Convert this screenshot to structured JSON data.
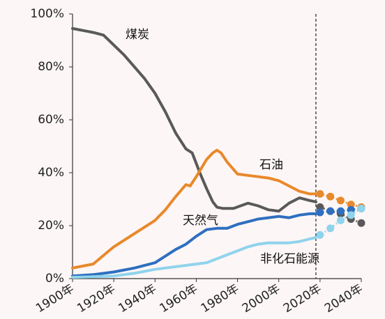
{
  "colors": {
    "background": "#fdf6f6",
    "coal": "#595959",
    "oil": "#e8892b",
    "gas": "#2e6fc0",
    "nonfossil": "#8fd3ec",
    "axis": "#333333"
  },
  "chart_data": {
    "type": "line",
    "title": "",
    "xlabel": "",
    "ylabel": "",
    "xlim": [
      1900,
      2040
    ],
    "ylim": [
      0,
      100
    ],
    "y_ticks": [
      0,
      20,
      40,
      60,
      80,
      100
    ],
    "y_tick_labels": [
      "0%",
      "20%",
      "40%",
      "60%",
      "80%",
      "100%"
    ],
    "x_ticks": [
      1900,
      1920,
      1940,
      1960,
      1980,
      2000,
      2020,
      2040
    ],
    "x_tick_labels": [
      "1900年",
      "1920年",
      "1940年",
      "1960年",
      "1980年",
      "2000年",
      "2020年",
      "2040年"
    ],
    "grid": false,
    "legend": "none (series labeled inline)",
    "forecast_start": 2018,
    "series": [
      {
        "name": "煤炭",
        "color_key": "coal",
        "x": [
          1900,
          1910,
          1915,
          1925,
          1935,
          1940,
          1945,
          1950,
          1955,
          1958,
          1962,
          1965,
          1968,
          1970,
          1973,
          1978,
          1985,
          1990,
          1995,
          2000,
          2005,
          2010,
          2015,
          2018
        ],
        "y": [
          94.5,
          93,
          92,
          84.5,
          75.5,
          70,
          63,
          55,
          49,
          47.5,
          39.5,
          34,
          29,
          27,
          26.5,
          26.5,
          28.5,
          27.5,
          26,
          25.5,
          28.5,
          30.5,
          29.5,
          29
        ],
        "forecast_x": [
          2020,
          2025,
          2030,
          2035,
          2040
        ],
        "forecast_y": [
          27,
          25.5,
          24.5,
          22.5,
          21
        ]
      },
      {
        "name": "石油",
        "color_key": "oil",
        "x": [
          1900,
          1910,
          1920,
          1930,
          1940,
          1945,
          1950,
          1955,
          1957,
          1960,
          1965,
          1968,
          1970,
          1972,
          1975,
          1980,
          1985,
          1990,
          1995,
          2000,
          2005,
          2010,
          2015,
          2018
        ],
        "y": [
          4,
          5.5,
          12,
          17,
          22,
          26,
          31,
          35.5,
          35,
          38.5,
          45,
          47.5,
          48.5,
          47.5,
          44,
          39.5,
          39,
          38.5,
          38,
          37,
          35,
          33,
          32,
          32
        ],
        "forecast_x": [
          2020,
          2025,
          2030,
          2035,
          2040
        ],
        "forecast_y": [
          32,
          31,
          29.5,
          28,
          27
        ]
      },
      {
        "name": "天然气",
        "color_key": "gas",
        "x": [
          1900,
          1910,
          1920,
          1930,
          1940,
          1945,
          1950,
          1955,
          1960,
          1965,
          1970,
          1975,
          1980,
          1985,
          1990,
          1995,
          2000,
          2005,
          2010,
          2015,
          2018
        ],
        "y": [
          1,
          1.5,
          2.5,
          4,
          6,
          8.5,
          11,
          13,
          16,
          18.5,
          19,
          19,
          20.5,
          21.5,
          22.5,
          23,
          23.5,
          23,
          24,
          24.5,
          24.5
        ],
        "forecast_x": [
          2020,
          2025,
          2030,
          2035,
          2040
        ],
        "forecast_y": [
          25,
          25.5,
          25.5,
          26,
          26.5
        ]
      },
      {
        "name": "非化石能源",
        "color_key": "nonfossil",
        "x": [
          1900,
          1910,
          1920,
          1930,
          1940,
          1950,
          1960,
          1965,
          1970,
          1975,
          1980,
          1985,
          1990,
          1995,
          2000,
          2005,
          2010,
          2015,
          2018
        ],
        "y": [
          0.5,
          0.7,
          1,
          2,
          3.5,
          4.5,
          5.5,
          6,
          7.5,
          9,
          10.5,
          12,
          13,
          13.5,
          13.5,
          13.5,
          14,
          15,
          15.5
        ],
        "forecast_x": [
          2020,
          2025,
          2030,
          2035,
          2040
        ],
        "forecast_y": [
          16.5,
          19,
          22,
          24,
          26.5
        ]
      }
    ]
  }
}
